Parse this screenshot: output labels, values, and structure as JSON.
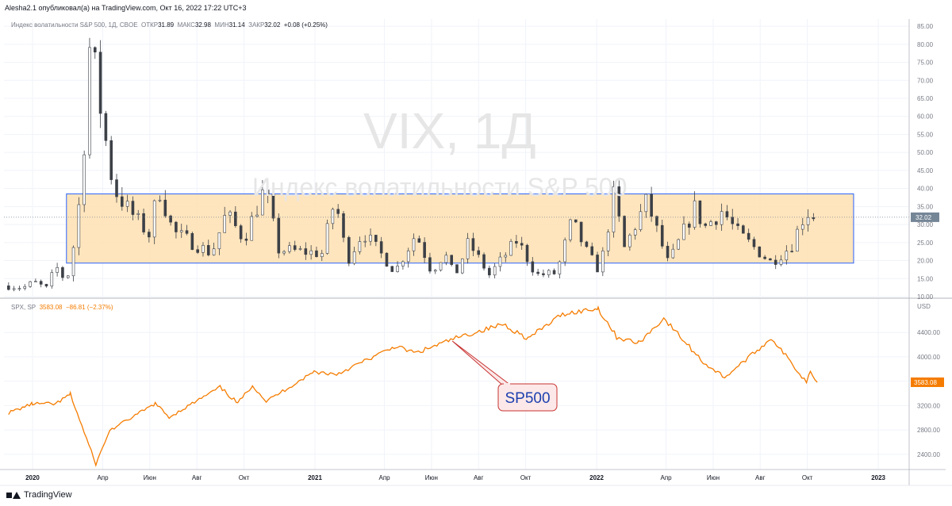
{
  "header": {
    "publish_line": "Alesha2.1 опубликовал(а) на TradingView.com, Окт 16, 2022 17:22 UTC+3"
  },
  "legend_vix": {
    "name": "Индекс волатильности S&P 500, 1Д, CBOE",
    "open_label": "ОТКР",
    "open": "31.89",
    "high_label": "МАКС",
    "high": "32.98",
    "low_label": "МИН",
    "low": "31.14",
    "close_label": "ЗАКР",
    "close": "32.02",
    "change": "+0.08 (+0.25%)"
  },
  "legend_spx": {
    "name": "SPX, SP",
    "last": "3583.08",
    "change": "−86.81 (−2.37%)"
  },
  "watermark": {
    "symbol": "VIX, 1Д",
    "description": "Индекс волатильности S&P 500"
  },
  "annotation": {
    "callout_text": "SP500"
  },
  "branding": {
    "text": "TradingView"
  },
  "colors": {
    "candle_up": "#26a69a",
    "candle_down": "#ef5350",
    "candle_stroke": "#3c4047",
    "spx_line": "#f57c00",
    "range_fill": "#ffe0b2",
    "range_border": "#2962ff",
    "last_price_bg": "#758696",
    "spx_price_bg": "#f57c00",
    "callout_fill": "#fce8e8",
    "callout_border": "#c83232",
    "callout_text": "#1e40af"
  },
  "chart_data": [
    {
      "type": "candlestick",
      "series_name": "Индекс волатильности S&P 500",
      "timeframe": "1Д",
      "last_price_label": "32.02",
      "ylim": [
        10,
        87
      ],
      "yticks": [
        10,
        15,
        20,
        25,
        30,
        35,
        40,
        45,
        50,
        55,
        60,
        65,
        70,
        75,
        80,
        85
      ],
      "ytick_labels": [
        "10.00",
        "15.00",
        "20.00",
        "25.00",
        "30.00",
        "35.00",
        "40.00",
        "45.00",
        "50.00",
        "55.00",
        "60.00",
        "65.00",
        "70.00",
        "75.00",
        "80.00",
        "85.00"
      ],
      "range_box": {
        "low": 19.3,
        "high": 38.5,
        "from": "2020-02-14",
        "to": "2022-11-30"
      },
      "key_points": [
        [
          "2019-12-01",
          13.0
        ],
        [
          "2019-12-20",
          12.5
        ],
        [
          "2020-01-03",
          14.0
        ],
        [
          "2020-01-20",
          12.2
        ],
        [
          "2020-01-31",
          18.5
        ],
        [
          "2020-02-14",
          14.0
        ],
        [
          "2020-02-24",
          25.0
        ],
        [
          "2020-03-05",
          42.0
        ],
        [
          "2020-03-16",
          82.7
        ],
        [
          "2020-03-27",
          65.0
        ],
        [
          "2020-04-15",
          40.0
        ],
        [
          "2020-05-01",
          35.0
        ],
        [
          "2020-06-01",
          27.0
        ],
        [
          "2020-06-12",
          40.8
        ],
        [
          "2020-07-01",
          28.0
        ],
        [
          "2020-08-20",
          22.0
        ],
        [
          "2020-09-08",
          33.0
        ],
        [
          "2020-10-01",
          26.0
        ],
        [
          "2020-10-28",
          40.0
        ],
        [
          "2020-11-15",
          23.0
        ],
        [
          "2021-01-10",
          22.0
        ],
        [
          "2021-01-27",
          37.2
        ],
        [
          "2021-02-12",
          20.0
        ],
        [
          "2021-03-04",
          28.0
        ],
        [
          "2021-04-15",
          17.0
        ],
        [
          "2021-05-12",
          27.6
        ],
        [
          "2021-06-01",
          17.0
        ],
        [
          "2021-06-18",
          22.0
        ],
        [
          "2021-07-01",
          15.5
        ],
        [
          "2021-07-19",
          25.0
        ],
        [
          "2021-08-15",
          16.0
        ],
        [
          "2021-09-20",
          25.7
        ],
        [
          "2021-10-15",
          16.0
        ],
        [
          "2021-11-10",
          16.5
        ],
        [
          "2021-11-30",
          31.0
        ],
        [
          "2021-12-20",
          22.0
        ],
        [
          "2022-01-05",
          17.0
        ],
        [
          "2022-01-24",
          38.9
        ],
        [
          "2022-02-05",
          23.0
        ],
        [
          "2022-03-07",
          36.5
        ],
        [
          "2022-04-04",
          19.0
        ],
        [
          "2022-05-09",
          35.0
        ],
        [
          "2022-05-20",
          29.0
        ],
        [
          "2022-06-13",
          34.0
        ],
        [
          "2022-07-01",
          28.0
        ],
        [
          "2022-08-15",
          19.5
        ],
        [
          "2022-09-10",
          24.0
        ],
        [
          "2022-09-29",
          33.6
        ],
        [
          "2022-10-14",
          32.0
        ]
      ]
    },
    {
      "type": "line",
      "series_name": "SPX, SP",
      "currency_label": "USD",
      "last_price_label": "3583.08",
      "ylim": [
        2150,
        4950
      ],
      "yticks": [
        2400,
        2800,
        3200,
        3600,
        4000,
        4400
      ],
      "ytick_labels": [
        "2400.00",
        "2800.00",
        "3200.00",
        "3600.00",
        "4000.00",
        "4400.00"
      ],
      "points": [
        [
          "2019-12-01",
          3080
        ],
        [
          "2020-01-01",
          3230
        ],
        [
          "2020-01-31",
          3225
        ],
        [
          "2020-02-19",
          3386
        ],
        [
          "2020-03-23",
          2237
        ],
        [
          "2020-04-10",
          2790
        ],
        [
          "2020-06-08",
          3232
        ],
        [
          "2020-06-26",
          3010
        ],
        [
          "2020-08-31",
          3500
        ],
        [
          "2020-09-23",
          3237
        ],
        [
          "2020-10-12",
          3535
        ],
        [
          "2020-10-30",
          3270
        ],
        [
          "2020-12-31",
          3756
        ],
        [
          "2021-01-29",
          3714
        ],
        [
          "2021-04-15",
          4170
        ],
        [
          "2021-05-12",
          4063
        ],
        [
          "2021-06-30",
          4297
        ],
        [
          "2021-09-02",
          4537
        ],
        [
          "2021-10-04",
          4300
        ],
        [
          "2021-11-18",
          4705
        ],
        [
          "2022-01-03",
          4796
        ],
        [
          "2022-01-27",
          4326
        ],
        [
          "2022-02-24",
          4225
        ],
        [
          "2022-03-29",
          4631
        ],
        [
          "2022-05-20",
          3900
        ],
        [
          "2022-06-16",
          3666
        ],
        [
          "2022-08-16",
          4305
        ],
        [
          "2022-09-30",
          3585
        ],
        [
          "2022-10-05",
          3790
        ],
        [
          "2022-10-14",
          3583
        ]
      ]
    }
  ],
  "x_axis": {
    "ticks": [
      {
        "date": "2020-01-01",
        "label": "2020",
        "bold": true
      },
      {
        "date": "2020-04-01",
        "label": "Апр",
        "bold": false
      },
      {
        "date": "2020-06-01",
        "label": "Июн",
        "bold": false
      },
      {
        "date": "2020-08-01",
        "label": "Авг",
        "bold": false
      },
      {
        "date": "2020-10-01",
        "label": "Окт",
        "bold": false
      },
      {
        "date": "2021-01-01",
        "label": "2021",
        "bold": true
      },
      {
        "date": "2021-04-01",
        "label": "Апр",
        "bold": false
      },
      {
        "date": "2021-06-01",
        "label": "Июн",
        "bold": false
      },
      {
        "date": "2021-08-01",
        "label": "Авг",
        "bold": false
      },
      {
        "date": "2021-10-01",
        "label": "Окт",
        "bold": false
      },
      {
        "date": "2022-01-01",
        "label": "2022",
        "bold": true
      },
      {
        "date": "2022-04-01",
        "label": "Апр",
        "bold": false
      },
      {
        "date": "2022-06-01",
        "label": "Июн",
        "bold": false
      },
      {
        "date": "2022-08-01",
        "label": "Авг",
        "bold": false
      },
      {
        "date": "2022-10-01",
        "label": "Окт",
        "bold": false
      },
      {
        "date": "2023-01-01",
        "label": "2023",
        "bold": true
      }
    ]
  }
}
